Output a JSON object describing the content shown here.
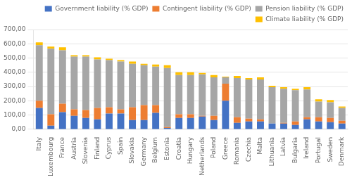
{
  "chart_data": {
    "type": "bar",
    "stacked": true,
    "categories": [
      "Italy",
      "Luxembourg",
      "France",
      "Austria",
      "Slovenia",
      "Finland",
      "Cyprus",
      "Spain",
      "Slovakia",
      "Germany",
      "Belgium",
      "Estonia",
      "Croatia",
      "Hungary",
      "Netherlands",
      "Poland",
      "Greece",
      "Romania",
      "Czechia",
      "Malta",
      "Lithuania",
      "Latvia",
      "Bulgaria",
      "Ireland",
      "Portugal",
      "Sweden",
      "Denmark"
    ],
    "series": [
      {
        "name": "Government liability (% GDP)",
        "color": "#4472C4",
        "values": [
          150,
          25,
          120,
          95,
          80,
          70,
          110,
          110,
          65,
          65,
          115,
          10,
          80,
          80,
          90,
          65,
          200,
          45,
          55,
          55,
          40,
          40,
          30,
          70,
          55,
          50,
          40
        ]
      },
      {
        "name": "Contingent liability (% GDP)",
        "color": "#ED7D31",
        "values": [
          50,
          80,
          60,
          45,
          55,
          80,
          45,
          30,
          90,
          105,
          55,
          5,
          25,
          25,
          5,
          30,
          120,
          40,
          20,
          15,
          0,
          5,
          25,
          15,
          30,
          30,
          20
        ]
      },
      {
        "name": "Pension liability (% GDP)",
        "color": "#A6A6A6",
        "values": [
          390,
          460,
          375,
          370,
          375,
          340,
          330,
          335,
          305,
          280,
          270,
          415,
          275,
          275,
          290,
          270,
          45,
          275,
          275,
          280,
          255,
          240,
          220,
          195,
          110,
          110,
          90
        ]
      },
      {
        "name": "Climate liability (% GDP)",
        "color": "#FFC000",
        "values": [
          20,
          15,
          20,
          10,
          10,
          15,
          10,
          10,
          15,
          10,
          15,
          20,
          20,
          20,
          10,
          15,
          5,
          15,
          10,
          15,
          10,
          10,
          10,
          15,
          15,
          15,
          10
        ]
      }
    ],
    "ylim": [
      0,
      700
    ],
    "yticks": [
      {
        "value": 0,
        "label": "0,00"
      },
      {
        "value": 100,
        "label": "100,00"
      },
      {
        "value": 200,
        "label": "200,00"
      },
      {
        "value": 300,
        "label": "300,00"
      },
      {
        "value": 400,
        "label": "400,00"
      },
      {
        "value": 500,
        "label": "500,00"
      },
      {
        "value": 600,
        "label": "600,00"
      },
      {
        "value": 700,
        "label": "700,00"
      }
    ],
    "grid": true,
    "legend": "upper right"
  }
}
